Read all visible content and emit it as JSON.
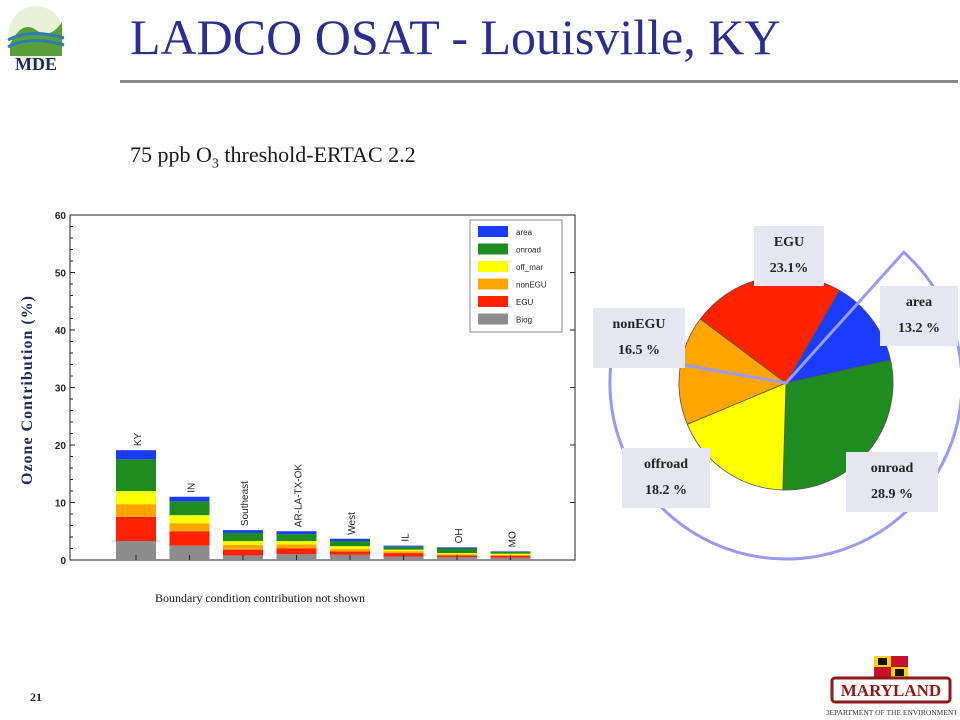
{
  "header": {
    "title": "LADCO OSAT - Louisville, KY",
    "logo_text": "MDE"
  },
  "subtitle": {
    "prefix": "75 ppb O",
    "subscript": "3",
    "suffix": " threshold-ERTAC 2.2"
  },
  "footnote": "Boundary condition contribution not shown",
  "page_number": "21",
  "footer_logo": {
    "main": "MARYLAND",
    "sub": "DEPARTMENT OF THE ENVIRONMENT"
  },
  "colors": {
    "area": "#1a3cff",
    "onroad": "#1f8c1f",
    "off_mar": "#ffff00",
    "nonEGU": "#ffa500",
    "EGU": "#ff2200",
    "Biog": "#8c8c8c",
    "title": "#2a2f8f"
  },
  "chart_data": [
    {
      "type": "bar",
      "stacked": true,
      "ylabel": "Ozone Contribution (%)",
      "ylim": [
        0,
        60
      ],
      "yticks": [
        0,
        10,
        20,
        30,
        40,
        50,
        60
      ],
      "categories": [
        "KY",
        "IN",
        "Southeast",
        "AR-LA-TX-OK",
        "West",
        "IL",
        "OH",
        "MO"
      ],
      "series": [
        {
          "name": "Biog",
          "values": [
            3.3,
            2.5,
            0.8,
            1.0,
            0.9,
            0.6,
            0.5,
            0.4
          ]
        },
        {
          "name": "EGU",
          "values": [
            4.2,
            2.5,
            1.0,
            1.0,
            0.6,
            0.6,
            0.3,
            0.3
          ]
        },
        {
          "name": "nonEGU",
          "values": [
            2.2,
            1.4,
            0.8,
            0.7,
            0.4,
            0.3,
            0.2,
            0.2
          ]
        },
        {
          "name": "off_mar",
          "values": [
            2.3,
            1.4,
            0.7,
            0.6,
            0.5,
            0.3,
            0.2,
            0.2
          ]
        },
        {
          "name": "onroad",
          "values": [
            5.5,
            2.4,
            1.4,
            1.2,
            0.9,
            0.5,
            0.8,
            0.3
          ]
        },
        {
          "name": "area",
          "values": [
            1.6,
            0.8,
            0.5,
            0.5,
            0.4,
            0.2,
            0.2,
            0.1
          ]
        }
      ],
      "legend": [
        "area",
        "onroad",
        "off_mar",
        "nonEGU",
        "EGU",
        "Biog"
      ],
      "legend_position": "top-right"
    },
    {
      "type": "pie",
      "slices": [
        {
          "name": "area",
          "value": 13.2,
          "label": "area",
          "pct_label": "13.2 %"
        },
        {
          "name": "onroad",
          "value": 28.9,
          "label": "onroad",
          "pct_label": "28.9 %"
        },
        {
          "name": "offroad",
          "value": 18.2,
          "label": "offroad",
          "pct_label": "18.2 %"
        },
        {
          "name": "nonEGU",
          "value": 16.5,
          "label": "nonEGU",
          "pct_label": "16.5 %"
        },
        {
          "name": "EGU",
          "value": 23.1,
          "label": "EGU",
          "pct_label": "23.1%"
        }
      ]
    }
  ]
}
